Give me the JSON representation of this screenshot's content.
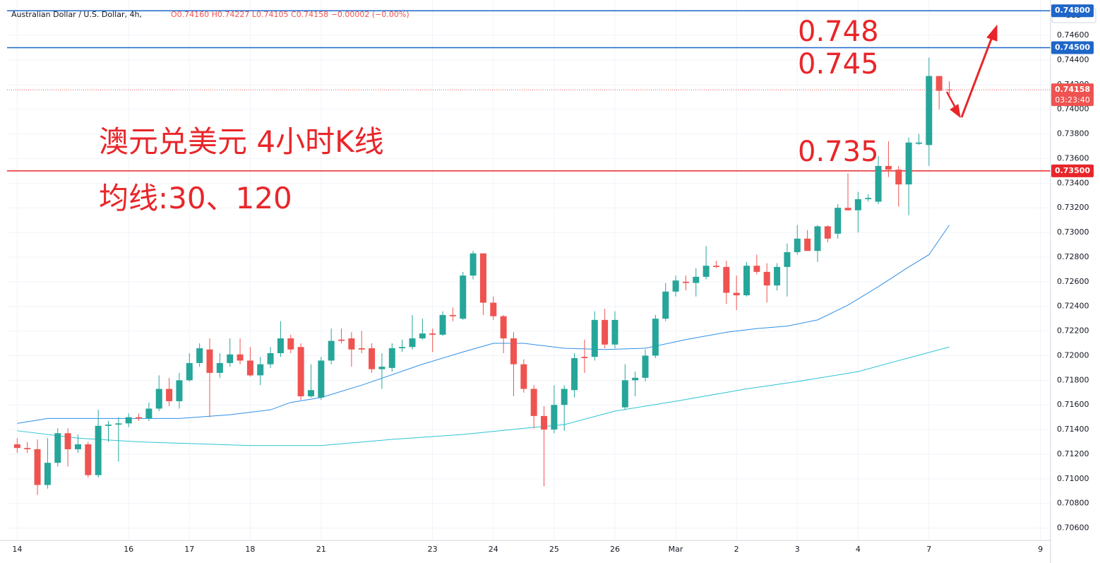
{
  "chart_data": {
    "type": "candlestick",
    "header": {
      "symbol": "Australian Dollar / U.S. Dollar, 4h,",
      "quote": "O0.74160 H0.74227 L0.74105 C0.74158 −0.00002 (−0.00%)"
    },
    "currency": "USD",
    "annotations": [
      "0.748",
      "0.745",
      "0.735"
    ],
    "title": "澳元兑美元 4小时K线",
    "subtitle": "均线:30、120",
    "up_color": "#26a69a",
    "down_color": "#ef5350",
    "grid": true,
    "xlim": [
      -1,
      102
    ],
    "xticks": [
      {
        "value": 0,
        "label": "14"
      },
      {
        "value": 11,
        "label": "16"
      },
      {
        "value": 17,
        "label": "17"
      },
      {
        "value": 23,
        "label": "18"
      },
      {
        "value": 30,
        "label": "21"
      },
      {
        "value": 41,
        "label": "23"
      },
      {
        "value": 47,
        "label": "24"
      },
      {
        "value": 53,
        "label": "25"
      },
      {
        "value": 59,
        "label": "26"
      },
      {
        "value": 65,
        "label": "Mar"
      },
      {
        "value": 71,
        "label": "2"
      },
      {
        "value": 77,
        "label": "3"
      },
      {
        "value": 83,
        "label": "4"
      },
      {
        "value": 90,
        "label": "7"
      },
      {
        "value": 101,
        "label": "9"
      }
    ],
    "ylim": [
      0.705,
      0.7483
    ],
    "yticks": [
      {
        "value": 0.706,
        "label": "0.70600"
      },
      {
        "value": 0.708,
        "label": "0.70800"
      },
      {
        "value": 0.71,
        "label": "0.71000"
      },
      {
        "value": 0.712,
        "label": "0.71200"
      },
      {
        "value": 0.714,
        "label": "0.71400"
      },
      {
        "value": 0.716,
        "label": "0.71600"
      },
      {
        "value": 0.718,
        "label": "0.71800"
      },
      {
        "value": 0.72,
        "label": "0.72000"
      },
      {
        "value": 0.722,
        "label": "0.72200"
      },
      {
        "value": 0.724,
        "label": "0.72400"
      },
      {
        "value": 0.726,
        "label": "0.72600"
      },
      {
        "value": 0.728,
        "label": "0.72800"
      },
      {
        "value": 0.73,
        "label": "0.73000"
      },
      {
        "value": 0.732,
        "label": "0.73200"
      },
      {
        "value": 0.734,
        "label": "0.73400"
      },
      {
        "value": 0.736,
        "label": "0.73600"
      },
      {
        "value": 0.738,
        "label": "0.73800"
      },
      {
        "value": 0.74,
        "label": "0.74000"
      },
      {
        "value": 0.742,
        "label": "0.74200"
      },
      {
        "value": 0.744,
        "label": "0.74400"
      },
      {
        "value": 0.746,
        "label": "0.74600"
      }
    ],
    "hlines": [
      {
        "value": 0.748,
        "label": "0.74800",
        "color": "#1e66c8"
      },
      {
        "value": 0.745,
        "label": "0.74500",
        "color": "#1e66c8"
      },
      {
        "value": 0.735,
        "label": "0.73500",
        "color": "#e8262a"
      }
    ],
    "last_price": {
      "value": 0.74158,
      "label": "0.74158",
      "countdown": "03:23:40",
      "color": "#ef5350"
    },
    "candles": {
      "open": [
        0.7128,
        0.7125,
        0.7124,
        0.7095,
        0.7113,
        0.7137,
        0.7124,
        0.7128,
        0.7103,
        0.7143,
        0.7144,
        0.7145,
        0.715,
        0.7149,
        0.7157,
        0.7173,
        0.7163,
        0.718,
        0.7194,
        0.7205,
        0.7186,
        0.7194,
        0.7201,
        0.7196,
        0.7184,
        0.7193,
        0.7202,
        0.7214,
        0.7207,
        0.7167,
        0.7166,
        0.7196,
        0.7213,
        0.7214,
        0.7206,
        0.7206,
        0.7189,
        0.719,
        0.7206,
        0.7207,
        0.7214,
        0.7218,
        0.7217,
        0.7233,
        0.723,
        0.7265,
        0.7283,
        0.7243,
        0.7232,
        0.7214,
        0.7193,
        0.7173,
        0.7151,
        0.714,
        0.716,
        0.7172,
        0.7199,
        0.7199,
        0.7229,
        0.7209,
        0.7158,
        0.718,
        0.7182,
        0.72,
        0.723,
        0.7252,
        0.726,
        0.7259,
        0.7264,
        0.7273,
        0.7272,
        0.7251,
        0.7249,
        0.7273,
        0.7268,
        0.7257,
        0.7272,
        0.7284,
        0.7295,
        0.7285,
        0.7305,
        0.7299,
        0.732,
        0.7318,
        0.7327,
        0.7325,
        0.7354,
        0.7351,
        0.7339,
        0.7372,
        0.7371,
        0.7427,
        0.7416
      ],
      "high": [
        0.7133,
        0.713,
        0.7132,
        0.7133,
        0.7141,
        0.7141,
        0.7136,
        0.713,
        0.7156,
        0.7147,
        0.715,
        0.7153,
        0.7153,
        0.7162,
        0.7184,
        0.7182,
        0.7186,
        0.7202,
        0.721,
        0.7214,
        0.7202,
        0.7214,
        0.7214,
        0.7207,
        0.7199,
        0.7207,
        0.7228,
        0.7217,
        0.721,
        0.7193,
        0.7199,
        0.7222,
        0.7222,
        0.7219,
        0.722,
        0.721,
        0.7202,
        0.721,
        0.7213,
        0.7233,
        0.723,
        0.7222,
        0.7236,
        0.7239,
        0.7268,
        0.7285,
        0.7283,
        0.7248,
        0.7233,
        0.7219,
        0.7197,
        0.7176,
        0.7159,
        0.7176,
        0.7176,
        0.7202,
        0.7213,
        0.7236,
        0.7238,
        0.7236,
        0.7193,
        0.7187,
        0.7205,
        0.7233,
        0.7259,
        0.7265,
        0.7265,
        0.7271,
        0.7289,
        0.7277,
        0.7277,
        0.7265,
        0.7276,
        0.7282,
        0.7275,
        0.7275,
        0.7291,
        0.7306,
        0.7302,
        0.7306,
        0.7306,
        0.7323,
        0.7348,
        0.7333,
        0.7331,
        0.7362,
        0.7374,
        0.7354,
        0.7377,
        0.738,
        0.7442,
        0.7427,
        0.74227
      ],
      "low": [
        0.7121,
        0.7121,
        0.7087,
        0.7092,
        0.711,
        0.711,
        0.7121,
        0.7101,
        0.7101,
        0.713,
        0.7114,
        0.7142,
        0.7147,
        0.7147,
        0.7155,
        0.7159,
        0.7157,
        0.7179,
        0.7191,
        0.715,
        0.7182,
        0.7191,
        0.7193,
        0.7183,
        0.7176,
        0.719,
        0.7199,
        0.7202,
        0.7164,
        0.7166,
        0.7164,
        0.7193,
        0.721,
        0.7191,
        0.7202,
        0.7186,
        0.7173,
        0.7187,
        0.7203,
        0.7205,
        0.7213,
        0.7203,
        0.7216,
        0.7228,
        0.7229,
        0.7262,
        0.7233,
        0.7229,
        0.7202,
        0.7167,
        0.717,
        0.7141,
        0.7094,
        0.7137,
        0.7139,
        0.7166,
        0.7186,
        0.7196,
        0.7206,
        0.7206,
        0.7156,
        0.7167,
        0.7179,
        0.7198,
        0.7228,
        0.7248,
        0.7253,
        0.7248,
        0.7262,
        0.7271,
        0.7242,
        0.7237,
        0.7248,
        0.7266,
        0.7243,
        0.7253,
        0.7248,
        0.7282,
        0.7285,
        0.7276,
        0.7292,
        0.7295,
        0.7318,
        0.73,
        0.7325,
        0.7323,
        0.7345,
        0.7321,
        0.7314,
        0.7371,
        0.7354,
        0.74,
        0.74105
      ],
      "close": [
        0.7125,
        0.7124,
        0.7095,
        0.7113,
        0.7137,
        0.7124,
        0.7128,
        0.7103,
        0.7143,
        0.7144,
        0.7145,
        0.715,
        0.7149,
        0.7157,
        0.7173,
        0.7163,
        0.718,
        0.7194,
        0.7206,
        0.7186,
        0.7194,
        0.7201,
        0.7196,
        0.7184,
        0.7193,
        0.7202,
        0.7214,
        0.7205,
        0.7167,
        0.7172,
        0.7196,
        0.7212,
        0.7212,
        0.7205,
        0.7205,
        0.7189,
        0.7191,
        0.7206,
        0.7207,
        0.7214,
        0.7218,
        0.7217,
        0.7233,
        0.7232,
        0.7265,
        0.7283,
        0.7243,
        0.7232,
        0.7214,
        0.7193,
        0.7173,
        0.7151,
        0.714,
        0.716,
        0.7173,
        0.7198,
        0.7198,
        0.7229,
        0.7209,
        0.7229,
        0.718,
        0.7182,
        0.72,
        0.723,
        0.7252,
        0.7261,
        0.7259,
        0.7264,
        0.7273,
        0.7272,
        0.7251,
        0.7249,
        0.7273,
        0.7268,
        0.7257,
        0.7272,
        0.7284,
        0.7295,
        0.7285,
        0.7305,
        0.7295,
        0.732,
        0.7318,
        0.7327,
        0.7328,
        0.7354,
        0.7351,
        0.7339,
        0.7373,
        0.7373,
        0.7427,
        0.7415,
        0.74158
      ]
    },
    "ma_lines": [
      {
        "color": "#2f8fe6",
        "x": [
          0,
          3,
          9,
          16,
          21,
          25,
          27,
          30,
          34,
          40,
          44,
          47,
          50,
          54,
          58,
          62,
          66,
          70,
          73,
          76,
          79,
          82,
          85,
          88,
          90,
          92
        ],
        "values": [
          0.7145,
          0.7149,
          0.7149,
          0.7149,
          0.7152,
          0.7156,
          0.7162,
          0.7166,
          0.7176,
          0.7193,
          0.7203,
          0.721,
          0.721,
          0.7206,
          0.7205,
          0.7206,
          0.7213,
          0.7219,
          0.7222,
          0.7224,
          0.7229,
          0.7241,
          0.7256,
          0.7272,
          0.7282,
          0.7306
        ]
      },
      {
        "color": "#2ec4d6",
        "x": [
          0,
          6,
          12,
          23,
          30,
          37,
          44,
          50,
          54,
          59,
          65,
          72,
          77,
          83,
          87,
          92
        ],
        "values": [
          0.7139,
          0.7133,
          0.713,
          0.7127,
          0.7127,
          0.7132,
          0.7136,
          0.7141,
          0.7144,
          0.7155,
          0.7163,
          0.7173,
          0.7179,
          0.7187,
          0.7196,
          0.7207
        ]
      }
    ]
  }
}
